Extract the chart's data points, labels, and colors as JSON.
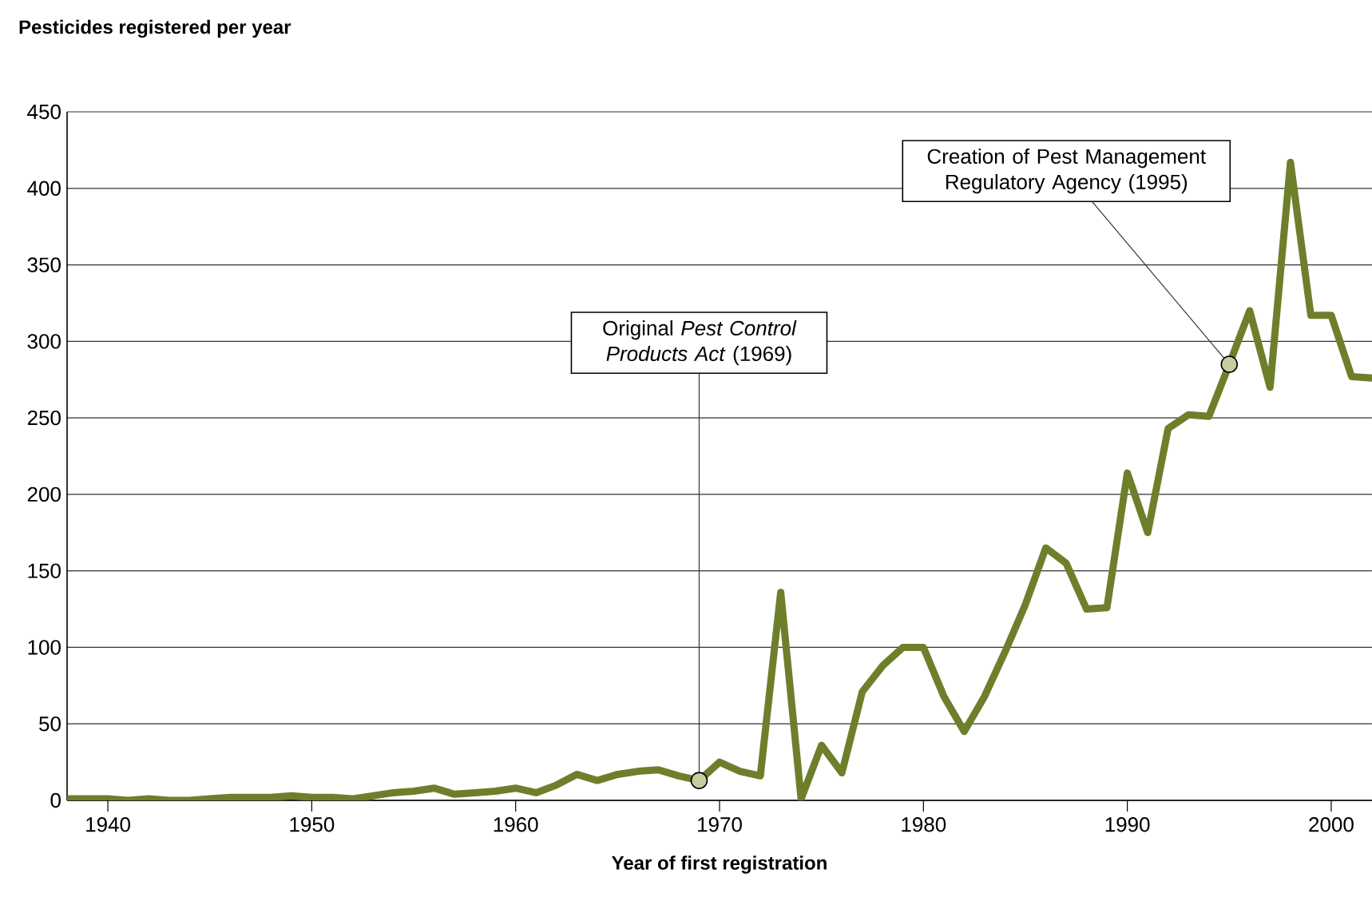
{
  "chart_data": {
    "type": "line",
    "ylabel": "Pesticides registered per year",
    "xlabel": "Year of first registration",
    "x": [
      1938,
      1939,
      1940,
      1941,
      1942,
      1943,
      1944,
      1945,
      1946,
      1947,
      1948,
      1949,
      1950,
      1951,
      1952,
      1953,
      1954,
      1955,
      1956,
      1957,
      1958,
      1959,
      1960,
      1961,
      1962,
      1963,
      1964,
      1965,
      1966,
      1967,
      1968,
      1969,
      1970,
      1971,
      1972,
      1973,
      1974,
      1975,
      1976,
      1977,
      1978,
      1979,
      1980,
      1981,
      1982,
      1983,
      1984,
      1985,
      1986,
      1987,
      1988,
      1989,
      1990,
      1991,
      1992,
      1993,
      1994,
      1995,
      1996,
      1997,
      1998,
      1999,
      2000,
      2001,
      2002
    ],
    "values": [
      1,
      1,
      1,
      0,
      1,
      0,
      0,
      1,
      2,
      2,
      2,
      3,
      2,
      2,
      1,
      3,
      5,
      6,
      8,
      4,
      5,
      6,
      8,
      5,
      10,
      17,
      13,
      17,
      19,
      20,
      16,
      13,
      25,
      19,
      16,
      136,
      1,
      36,
      18,
      71,
      88,
      100,
      100,
      68,
      45,
      68,
      97,
      128,
      165,
      155,
      125,
      126,
      214,
      175,
      243,
      252,
      251,
      285,
      320,
      270,
      417,
      317,
      317,
      277,
      276
    ],
    "color": "#6e7f2b",
    "xlim": [
      1938,
      2002
    ],
    "ylim": [
      0,
      450
    ],
    "xticks": [
      1940,
      1950,
      1960,
      1970,
      1980,
      1990,
      2000
    ],
    "yticks": [
      0,
      50,
      100,
      150,
      200,
      250,
      300,
      350,
      400,
      450
    ],
    "grid": "y",
    "annotations": [
      {
        "text": "Original *Pest Control Products Act* (1969)",
        "x": 1969,
        "y": 13
      },
      {
        "text": "Creation of Pest Management Regulatory Agency (1995)",
        "x": 1995,
        "y": 285
      }
    ]
  }
}
